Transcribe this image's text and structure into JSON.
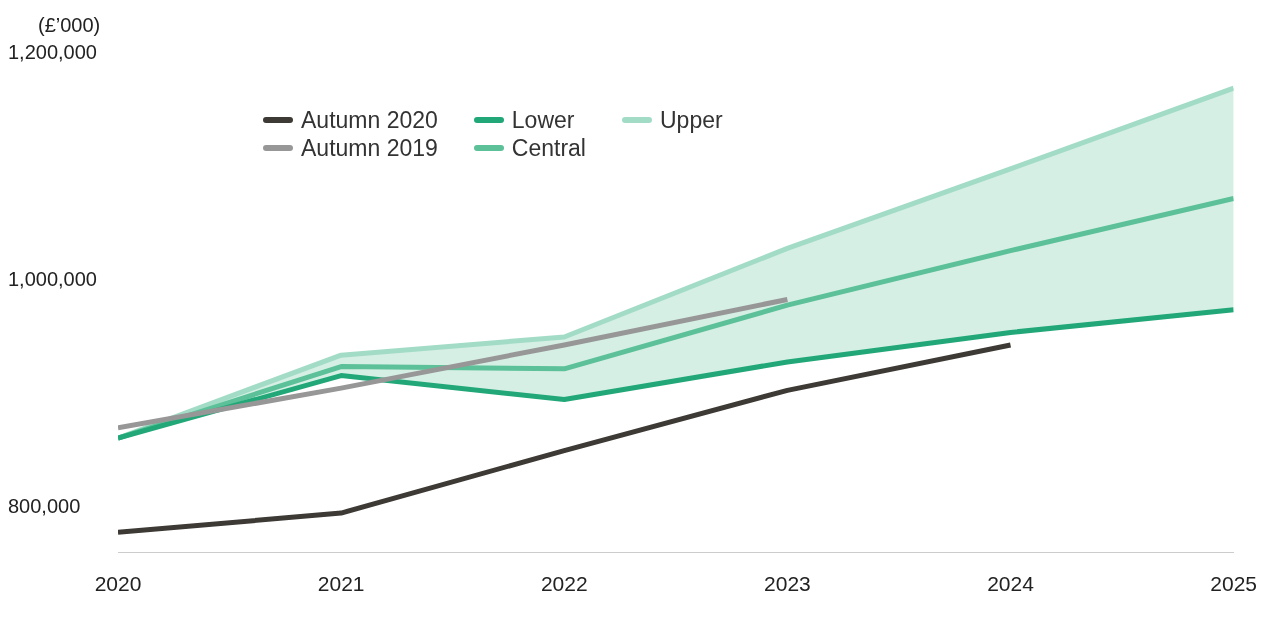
{
  "chart_data": {
    "type": "line",
    "ylabel": "(£’000)",
    "x": [
      2020,
      2021,
      2022,
      2023,
      2024,
      2025
    ],
    "xlim": [
      2020,
      2025
    ],
    "xticks": [
      2020,
      2021,
      2022,
      2023,
      2024,
      2025
    ],
    "ylim": [
      760000,
      1200000
    ],
    "yticks": [
      {
        "value": 800000,
        "label": "800,000"
      },
      {
        "value": 1000000,
        "label": "1,000,000"
      },
      {
        "value": 1200000,
        "label": "1,200,000"
      }
    ],
    "grid": false,
    "legend": "top left",
    "marker": "none",
    "line_style": "solid",
    "series": [
      {
        "name": "Autumn 2020",
        "color": "#3d3935",
        "values": [
          778000,
          795000,
          850000,
          903000,
          943000,
          null
        ]
      },
      {
        "name": "Autumn 2019",
        "color": "#979797",
        "values": [
          870000,
          905000,
          943000,
          983000,
          null,
          null
        ]
      },
      {
        "name": "Lower",
        "color": "#22a878",
        "values": [
          861000,
          916000,
          895000,
          928000,
          954000,
          974000
        ]
      },
      {
        "name": "Central",
        "color": "#5cc199",
        "values": [
          861000,
          924000,
          922000,
          978000,
          1026000,
          1072000
        ],
        "lower": [
          861000,
          916000,
          895000,
          928000,
          954000,
          974000
        ],
        "upper": [
          861000,
          934000,
          950000,
          1028000,
          1098000,
          1169000
        ]
      },
      {
        "name": "Upper",
        "color": "#a3dcc6",
        "values": [
          861000,
          934000,
          950000,
          1028000,
          1098000,
          1169000
        ]
      }
    ]
  }
}
